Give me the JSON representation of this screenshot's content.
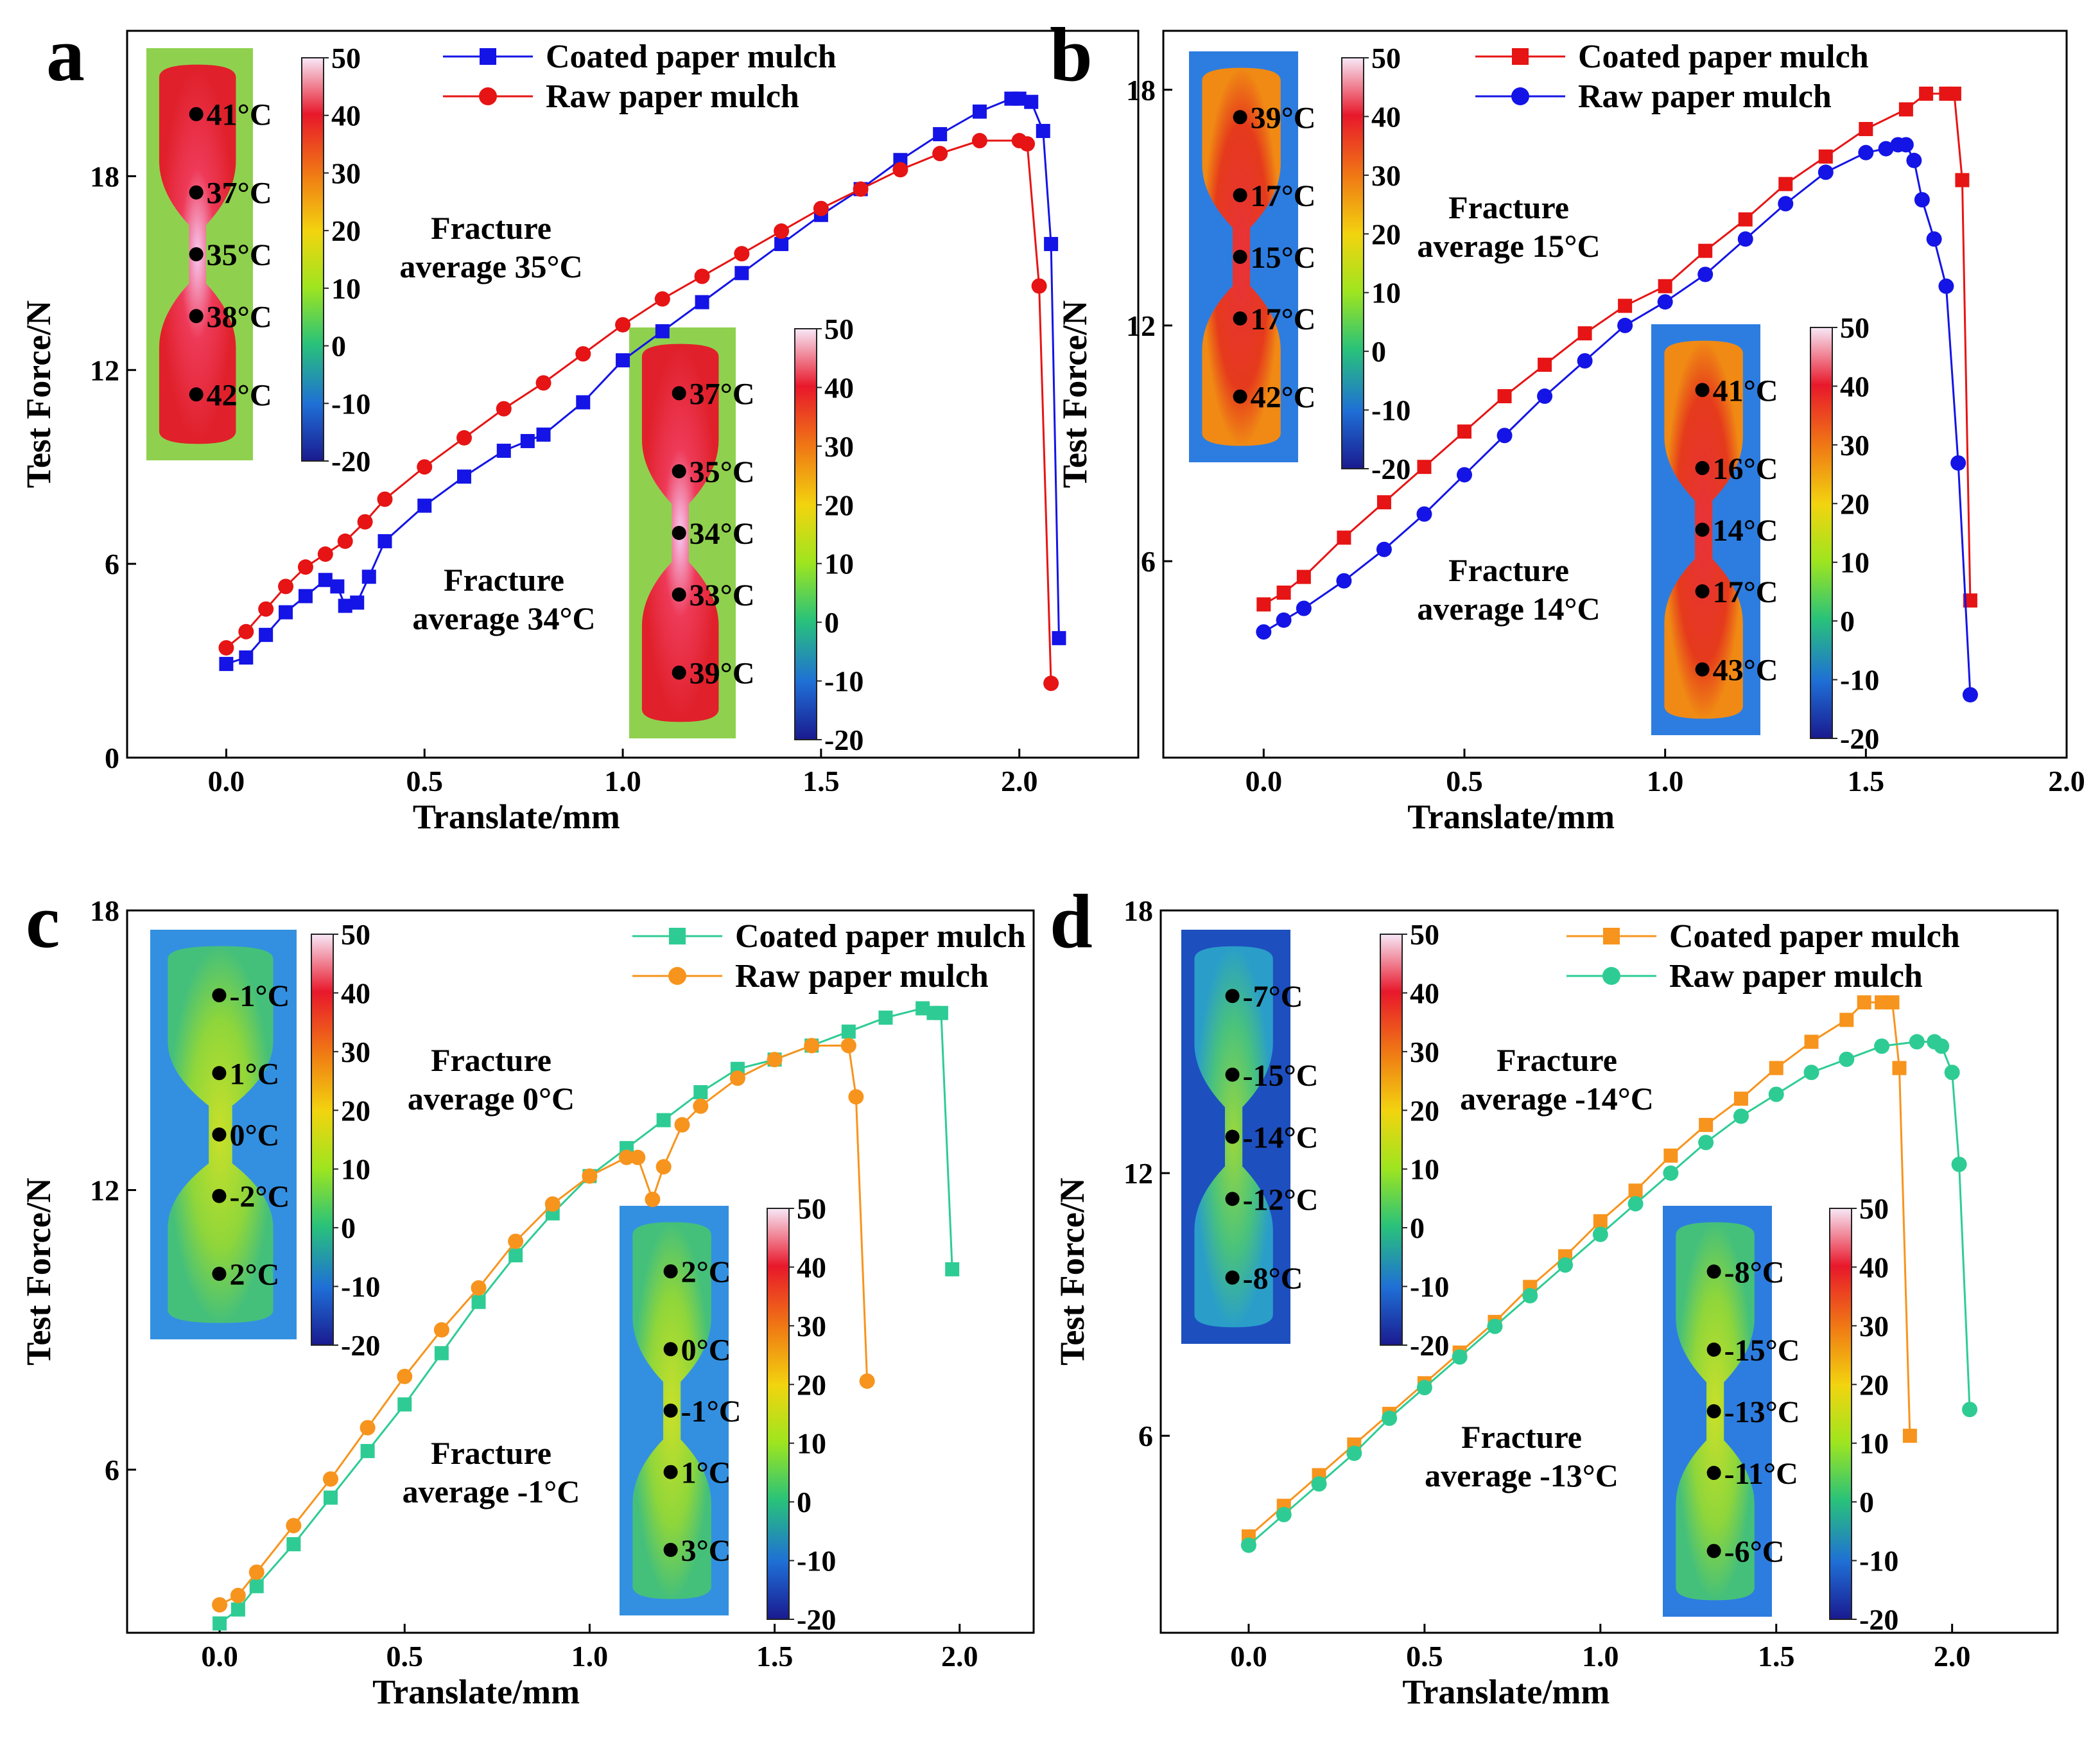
{
  "chart_data": [
    {
      "type": "line",
      "panel": "a",
      "xlabel": "Translate/mm",
      "ylabel": "Test Force/N",
      "xlim": [
        -0.25,
        2.3
      ],
      "ylim": [
        0,
        22.5
      ],
      "xticks": [
        0.0,
        0.5,
        1.0,
        1.5,
        2.0
      ],
      "xtick_labels": [
        "0.0",
        "0.5",
        "1.0",
        "1.5",
        "2.0"
      ],
      "yticks": [
        0,
        6,
        12,
        18
      ],
      "ytick_labels": [
        "0",
        "6",
        "12",
        "18"
      ],
      "series": [
        {
          "name": "Coated paper mulch",
          "color": "#1414e6",
          "marker": "square",
          "x": [
            0.0,
            0.05,
            0.1,
            0.15,
            0.2,
            0.25,
            0.28,
            0.3,
            0.33,
            0.36,
            0.4,
            0.5,
            0.6,
            0.7,
            0.76,
            0.8,
            0.9,
            1.0,
            1.1,
            1.2,
            1.3,
            1.4,
            1.5,
            1.6,
            1.7,
            1.8,
            1.9,
            1.98,
            2.0,
            2.03,
            2.06,
            2.08,
            2.1
          ],
          "y": [
            2.9,
            3.1,
            3.8,
            4.5,
            5.0,
            5.5,
            5.3,
            4.7,
            4.8,
            5.6,
            6.7,
            7.8,
            8.7,
            9.5,
            9.8,
            10.0,
            11.0,
            12.3,
            13.2,
            14.1,
            15.0,
            15.9,
            16.8,
            17.6,
            18.5,
            19.3,
            20.0,
            20.4,
            20.4,
            20.3,
            19.4,
            15.9,
            3.7
          ]
        },
        {
          "name": "Raw paper mulch",
          "color": "#e61414",
          "marker": "circle",
          "x": [
            0.0,
            0.05,
            0.1,
            0.15,
            0.2,
            0.25,
            0.3,
            0.35,
            0.4,
            0.5,
            0.6,
            0.7,
            0.8,
            0.9,
            1.0,
            1.1,
            1.2,
            1.3,
            1.4,
            1.5,
            1.6,
            1.7,
            1.8,
            1.9,
            2.0,
            2.02,
            2.05,
            2.08
          ],
          "y": [
            3.4,
            3.9,
            4.6,
            5.3,
            5.9,
            6.3,
            6.7,
            7.3,
            8.0,
            9.0,
            9.9,
            10.8,
            11.6,
            12.5,
            13.4,
            14.2,
            14.9,
            15.6,
            16.3,
            17.0,
            17.6,
            18.2,
            18.7,
            19.1,
            19.1,
            19.0,
            14.6,
            2.3
          ]
        }
      ],
      "legend": {
        "entries": [
          "Coated paper mulch",
          "Raw paper mulch"
        ],
        "placement": "top"
      },
      "annotations": [
        {
          "line1": "Fracture",
          "line2": "average 35°C"
        },
        {
          "line1": "Fracture",
          "line2": "average 34°C"
        }
      ],
      "thermal_insets": [
        {
          "id": "a-top",
          "background": "#8fd14f",
          "temps": [
            "41°C",
            "37°C",
            "35°C",
            "38°C",
            "42°C"
          ]
        },
        {
          "id": "a-bottom",
          "background": "#8fd14f",
          "temps": [
            "37°C",
            "35°C",
            "34°C",
            "33°C",
            "39°C"
          ]
        }
      ]
    },
    {
      "type": "line",
      "panel": "b",
      "xlabel": "Translate/mm",
      "ylabel": "Test Force/N",
      "xlim": [
        -0.25,
        2.0
      ],
      "ylim": [
        1.0,
        19.5
      ],
      "xticks": [
        0.0,
        0.5,
        1.0,
        1.5,
        2.0
      ],
      "xtick_labels": [
        "0.0",
        "0.5",
        "1.0",
        "1.5",
        "2.0"
      ],
      "yticks": [
        6,
        12,
        18
      ],
      "ytick_labels": [
        "6",
        "12",
        "18"
      ],
      "series": [
        {
          "name": "Coated paper mulch",
          "color": "#e61414",
          "marker": "square",
          "x": [
            0.0,
            0.05,
            0.1,
            0.2,
            0.3,
            0.4,
            0.5,
            0.6,
            0.7,
            0.8,
            0.9,
            1.0,
            1.1,
            1.2,
            1.3,
            1.4,
            1.5,
            1.6,
            1.65,
            1.7,
            1.72,
            1.74,
            1.76
          ],
          "y": [
            4.9,
            5.2,
            5.6,
            6.6,
            7.5,
            8.4,
            9.3,
            10.2,
            11.0,
            11.8,
            12.5,
            13.0,
            13.9,
            14.7,
            15.6,
            16.3,
            17.0,
            17.5,
            17.9,
            17.9,
            17.9,
            15.7,
            5.0
          ]
        },
        {
          "name": "Raw paper mulch",
          "color": "#1414e6",
          "marker": "circle",
          "x": [
            0.0,
            0.05,
            0.1,
            0.2,
            0.3,
            0.4,
            0.5,
            0.6,
            0.7,
            0.8,
            0.9,
            1.0,
            1.1,
            1.2,
            1.3,
            1.4,
            1.5,
            1.55,
            1.58,
            1.6,
            1.62,
            1.64,
            1.67,
            1.7,
            1.73,
            1.76
          ],
          "y": [
            4.2,
            4.5,
            4.8,
            5.5,
            6.3,
            7.2,
            8.2,
            9.2,
            10.2,
            11.1,
            12.0,
            12.6,
            13.3,
            14.2,
            15.1,
            15.9,
            16.4,
            16.5,
            16.6,
            16.6,
            16.2,
            15.2,
            14.2,
            13.0,
            8.5,
            2.6
          ]
        }
      ],
      "legend": {
        "entries": [
          "Coated paper mulch",
          "Raw paper mulch"
        ],
        "placement": "top"
      },
      "annotations": [
        {
          "line1": "Fracture",
          "line2": "average 15°C"
        },
        {
          "line1": "Fracture",
          "line2": "average 14°C"
        }
      ],
      "thermal_insets": [
        {
          "id": "b-top",
          "background": "#2d7de0",
          "temps": [
            "39°C",
            "17°C",
            "15°C",
            "17°C",
            "42°C"
          ]
        },
        {
          "id": "b-bottom",
          "background": "#2d7de0",
          "temps": [
            "41°C",
            "16°C",
            "14°C",
            "17°C",
            "43°C"
          ]
        }
      ]
    },
    {
      "type": "line",
      "panel": "c",
      "xlabel": "Translate/mm",
      "ylabel": "Test Force/N",
      "xlim": [
        -0.25,
        2.2
      ],
      "ylim": [
        2.5,
        18.0
      ],
      "xticks": [
        0.0,
        0.5,
        1.0,
        1.5,
        2.0
      ],
      "xtick_labels": [
        "0.0",
        "0.5",
        "1.0",
        "1.5",
        "2.0"
      ],
      "yticks": [
        6,
        12,
        18
      ],
      "ytick_labels": [
        "6",
        "12",
        "18"
      ],
      "series": [
        {
          "name": "Coated paper mulch",
          "color": "#2ecc94",
          "marker": "square",
          "x": [
            0.0,
            0.05,
            0.1,
            0.2,
            0.3,
            0.4,
            0.5,
            0.6,
            0.7,
            0.8,
            0.9,
            1.0,
            1.1,
            1.2,
            1.3,
            1.4,
            1.5,
            1.6,
            1.7,
            1.8,
            1.9,
            1.93,
            1.95,
            1.98
          ],
          "y": [
            2.7,
            3.0,
            3.5,
            4.4,
            5.4,
            6.4,
            7.4,
            8.5,
            9.6,
            10.6,
            11.5,
            12.3,
            12.9,
            13.5,
            14.1,
            14.6,
            14.8,
            15.1,
            15.4,
            15.7,
            15.9,
            15.8,
            15.8,
            10.3
          ]
        },
        {
          "name": "Raw paper mulch",
          "color": "#f7941d",
          "marker": "circle",
          "x": [
            0.0,
            0.05,
            0.1,
            0.2,
            0.3,
            0.4,
            0.5,
            0.6,
            0.7,
            0.8,
            0.9,
            1.0,
            1.1,
            1.13,
            1.17,
            1.2,
            1.25,
            1.3,
            1.4,
            1.5,
            1.6,
            1.7,
            1.72,
            1.75
          ],
          "y": [
            3.1,
            3.3,
            3.8,
            4.8,
            5.8,
            6.9,
            8.0,
            9.0,
            9.9,
            10.9,
            11.7,
            12.3,
            12.7,
            12.7,
            11.8,
            12.5,
            13.4,
            13.8,
            14.4,
            14.8,
            15.1,
            15.1,
            14.0,
            7.9
          ]
        }
      ],
      "legend": {
        "entries": [
          "Coated paper mulch",
          "Raw paper mulch"
        ],
        "placement": "top"
      },
      "annotations": [
        {
          "line1": "Fracture",
          "line2": "average 0°C"
        },
        {
          "line1": "Fracture",
          "line2": "average -1°C"
        }
      ],
      "thermal_insets": [
        {
          "id": "c-top",
          "background": "#3390e0",
          "temps": [
            "-1°C",
            "1°C",
            "0°C",
            "-2°C",
            "2°C"
          ]
        },
        {
          "id": "c-bottom",
          "background": "#3390e0",
          "temps": [
            "2°C",
            "0°C",
            "-1°C",
            "1°C",
            "3°C"
          ]
        }
      ]
    },
    {
      "type": "line",
      "panel": "d",
      "xlabel": "Translate/mm",
      "ylabel": "Test Force/N",
      "xlim": [
        -0.25,
        2.3
      ],
      "ylim": [
        1.5,
        18.0
      ],
      "xticks": [
        0.0,
        0.5,
        1.0,
        1.5,
        2.0
      ],
      "xtick_labels": [
        "0.0",
        "0.5",
        "1.0",
        "1.5",
        "2.0"
      ],
      "yticks": [
        6,
        12,
        18
      ],
      "ytick_labels": [
        "6",
        "12",
        "18"
      ],
      "series": [
        {
          "name": "Coated paper mulch",
          "color": "#f7941d",
          "marker": "square",
          "x": [
            0.0,
            0.1,
            0.2,
            0.3,
            0.4,
            0.5,
            0.6,
            0.7,
            0.8,
            0.9,
            1.0,
            1.1,
            1.2,
            1.3,
            1.4,
            1.5,
            1.6,
            1.7,
            1.75,
            1.8,
            1.83,
            1.85,
            1.88
          ],
          "y": [
            3.7,
            4.4,
            5.1,
            5.8,
            6.5,
            7.2,
            7.9,
            8.6,
            9.4,
            10.1,
            10.9,
            11.6,
            12.4,
            13.1,
            13.7,
            14.4,
            15.0,
            15.5,
            15.9,
            15.9,
            15.9,
            14.4,
            6.0
          ]
        },
        {
          "name": "Raw paper mulch",
          "color": "#2ecc94",
          "marker": "circle",
          "x": [
            0.0,
            0.1,
            0.2,
            0.3,
            0.4,
            0.5,
            0.6,
            0.7,
            0.8,
            0.9,
            1.0,
            1.1,
            1.2,
            1.3,
            1.4,
            1.5,
            1.6,
            1.7,
            1.8,
            1.9,
            1.95,
            1.97,
            2.0,
            2.02,
            2.05
          ],
          "y": [
            3.5,
            4.2,
            4.9,
            5.6,
            6.4,
            7.1,
            7.8,
            8.5,
            9.2,
            9.9,
            10.6,
            11.3,
            12.0,
            12.7,
            13.3,
            13.8,
            14.3,
            14.6,
            14.9,
            15.0,
            15.0,
            14.9,
            14.3,
            12.2,
            6.6
          ]
        }
      ],
      "legend": {
        "entries": [
          "Coated paper mulch",
          "Raw paper mulch"
        ],
        "placement": "top"
      },
      "annotations": [
        {
          "line1": "Fracture",
          "line2": "average -14°C"
        },
        {
          "line1": "Fracture",
          "line2": "average -13°C"
        }
      ],
      "thermal_insets": [
        {
          "id": "d-top",
          "background": "#1d4fbf",
          "temps": [
            "-7°C",
            "-15°C",
            "-14°C",
            "-12°C",
            "-8°C"
          ]
        },
        {
          "id": "d-bottom",
          "background": "#2d7de0",
          "temps": [
            "-8°C",
            "-15°C",
            "-13°C",
            "-11°C",
            "-6°C"
          ]
        }
      ]
    }
  ],
  "panel_letters": [
    "a",
    "b",
    "c",
    "d"
  ],
  "colorbar": {
    "labels": [
      "50",
      "40",
      "30",
      "20",
      "10",
      "0",
      "-10",
      "-20"
    ],
    "min": -20,
    "max": 50
  }
}
